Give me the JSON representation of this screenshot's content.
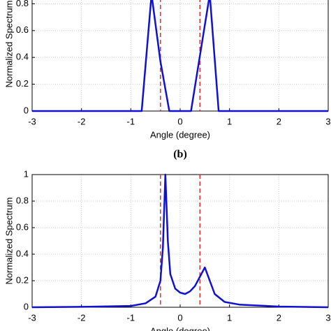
{
  "chart_data": [
    {
      "type": "line",
      "xlabel": "Angle (degree)",
      "ylabel": "Normalized Spectrum",
      "caption": "(b)",
      "xlim": [
        -3,
        3
      ],
      "xticks": [
        -3,
        -2,
        -1,
        0,
        1,
        2,
        3
      ],
      "ylim": [
        0,
        1
      ],
      "yticks": [
        0,
        0.2,
        0.4,
        0.6,
        0.8
      ],
      "grid": true,
      "series": [
        {
          "color": "#1010d0",
          "x": [
            -3,
            -0.78,
            -0.58,
            -0.4,
            -0.22,
            0.22,
            0.6,
            0.78,
            3
          ],
          "values": [
            0,
            0,
            0.87,
            0.37,
            0,
            0,
            0.87,
            0,
            0
          ]
        }
      ],
      "vlines": {
        "color": "#e03030",
        "x": [
          -0.4,
          0.4
        ]
      }
    },
    {
      "type": "line",
      "xlabel": "Angle (degree)",
      "ylabel": "Normalized Spectrum",
      "xlim": [
        -3,
        3
      ],
      "xticks": [
        -3,
        -2,
        -1,
        0,
        1,
        2,
        3
      ],
      "ylim": [
        0,
        1
      ],
      "yticks": [
        0,
        0.2,
        0.4,
        0.6,
        0.8,
        1
      ],
      "grid": true,
      "series": [
        {
          "color": "#1010d0",
          "x": [
            -3,
            -2,
            -1,
            -0.7,
            -0.5,
            -0.4,
            -0.35,
            -0.3,
            -0.25,
            -0.2,
            -0.1,
            0,
            0.1,
            0.2,
            0.3,
            0.4,
            0.5,
            0.6,
            0.7,
            0.9,
            1.2,
            2,
            3
          ],
          "values": [
            0,
            0.003,
            0.01,
            0.03,
            0.08,
            0.2,
            0.45,
            1,
            0.5,
            0.25,
            0.14,
            0.11,
            0.1,
            0.12,
            0.16,
            0.23,
            0.3,
            0.2,
            0.1,
            0.04,
            0.02,
            0.005,
            0
          ]
        }
      ],
      "vlines": {
        "color": "#e03030",
        "x": [
          -0.4,
          0.4
        ]
      }
    }
  ]
}
